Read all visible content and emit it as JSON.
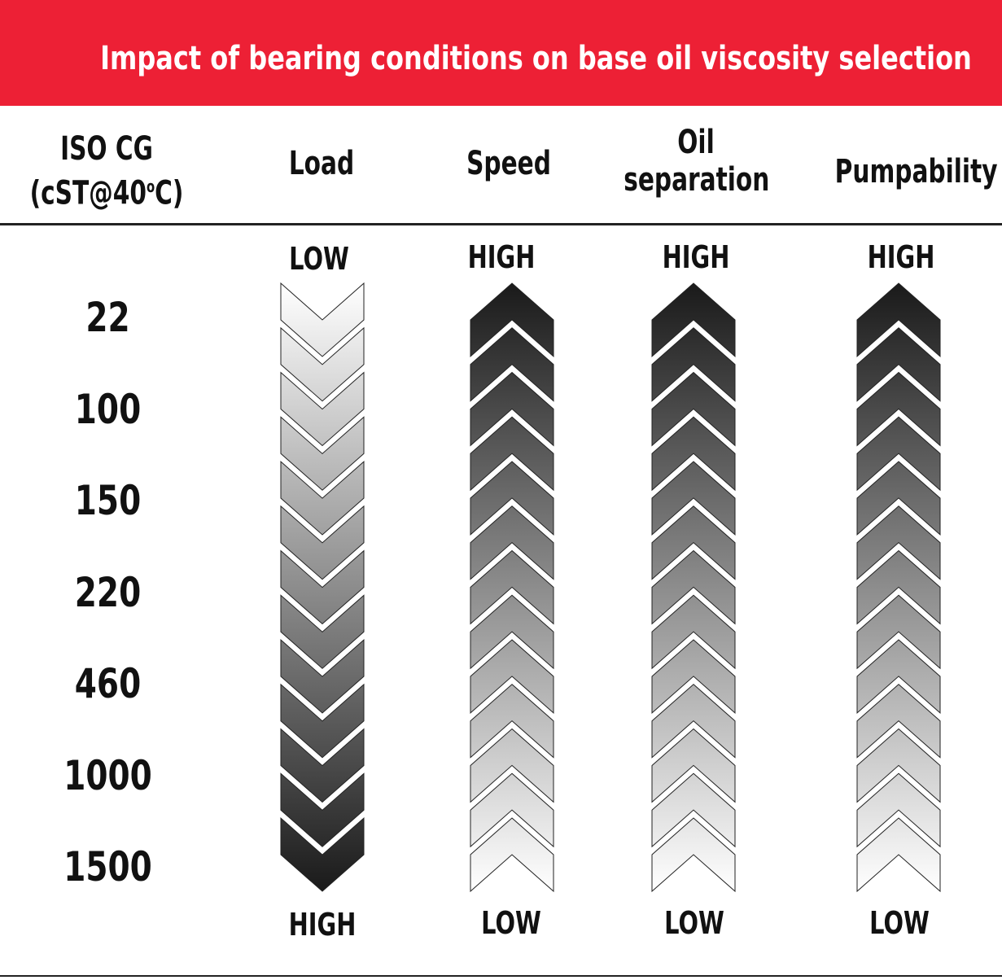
{
  "title": "Impact of bearing conditions on base oil viscosity selection",
  "header": {
    "iso_line1": "ISO CG",
    "iso_line2": "(cST@40",
    "iso_degree": "o",
    "iso_line2_end": "C)"
  },
  "columns": [
    {
      "label_line1": "Load",
      "label_line2": "",
      "top_label": "LOW",
      "bottom_label": "HIGH",
      "direction": "down"
    },
    {
      "label_line1": "Speed",
      "label_line2": "",
      "top_label": "HIGH",
      "bottom_label": "LOW",
      "direction": "up"
    },
    {
      "label_line1": "Oil",
      "label_line2": "separation",
      "top_label": "HIGH",
      "bottom_label": "LOW",
      "direction": "up"
    },
    {
      "label_line1": "Pumpability",
      "label_line2": "",
      "top_label": "HIGH",
      "bottom_label": "LOW",
      "direction": "up"
    }
  ],
  "iso_grades": [
    "22",
    "100",
    "150",
    "220",
    "460",
    "1000",
    "1500"
  ],
  "colors": {
    "banner": "#ed2035",
    "dark_end": "#1a1a1a",
    "light_end": "#ffffff"
  }
}
